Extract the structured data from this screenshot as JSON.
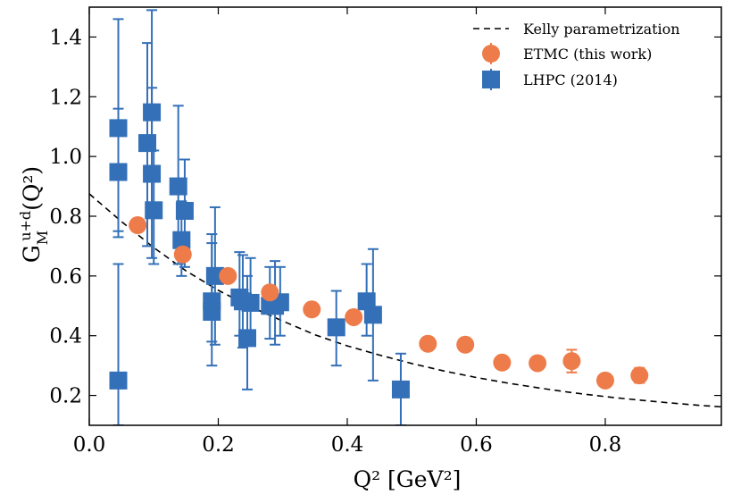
{
  "chart_data": {
    "type": "scatter",
    "title": "",
    "xlabel": "Q² [GeV²]",
    "ylabel": "G_M^{u+d}(Q²)",
    "ylabel_main": "G",
    "ylabel_sup": "u+d",
    "ylabel_sub": "M",
    "ylabel_tail": "(Q²)",
    "xlim": [
      0.0,
      0.98
    ],
    "ylim": [
      0.1,
      1.5
    ],
    "xticks": [
      0.0,
      0.2,
      0.4,
      0.6,
      0.8
    ],
    "xtick_labels": [
      "0.0",
      "0.2",
      "0.4",
      "0.6",
      "0.8"
    ],
    "yticks": [
      0.2,
      0.4,
      0.6,
      0.8,
      1.0,
      1.2,
      1.4
    ],
    "ytick_labels": [
      "0.2",
      "0.4",
      "0.6",
      "0.8",
      "1.0",
      "1.2",
      "1.4"
    ],
    "legend_position": "top-right",
    "colors": {
      "etmc": "#EE7C4A",
      "lhpc": "#3470B8",
      "kelly": "#000000"
    },
    "series": [
      {
        "name": "Kelly parametrization",
        "style": "dashed-line",
        "x": [
          0.0,
          0.05,
          0.1,
          0.15,
          0.2,
          0.25,
          0.3,
          0.35,
          0.4,
          0.45,
          0.5,
          0.55,
          0.6,
          0.65,
          0.7,
          0.75,
          0.8,
          0.85,
          0.9,
          0.95,
          0.98
        ],
        "y": [
          0.875,
          0.782,
          0.695,
          0.617,
          0.552,
          0.497,
          0.449,
          0.403,
          0.366,
          0.335,
          0.307,
          0.282,
          0.26,
          0.241,
          0.224,
          0.209,
          0.196,
          0.185,
          0.175,
          0.166,
          0.162
        ]
      },
      {
        "name": "ETMC (this work)",
        "marker": "circle",
        "points": [
          {
            "x": 0.075,
            "y": 0.77,
            "err": 0.015
          },
          {
            "x": 0.145,
            "y": 0.672,
            "err": 0.015
          },
          {
            "x": 0.215,
            "y": 0.6,
            "err": 0.015
          },
          {
            "x": 0.28,
            "y": 0.545,
            "err": 0.015
          },
          {
            "x": 0.345,
            "y": 0.488,
            "err": 0.015
          },
          {
            "x": 0.41,
            "y": 0.462,
            "err": 0.015
          },
          {
            "x": 0.525,
            "y": 0.373,
            "err": 0.015
          },
          {
            "x": 0.583,
            "y": 0.37,
            "err": 0.015
          },
          {
            "x": 0.64,
            "y": 0.31,
            "err": 0.015
          },
          {
            "x": 0.695,
            "y": 0.308,
            "err": 0.015
          },
          {
            "x": 0.748,
            "y": 0.315,
            "err": 0.038
          },
          {
            "x": 0.8,
            "y": 0.25,
            "err": 0.02
          },
          {
            "x": 0.853,
            "y": 0.267,
            "err": 0.025
          }
        ]
      },
      {
        "name": "LHPC (2014)",
        "marker": "square",
        "points": [
          {
            "x": 0.045,
            "y": 1.095,
            "lo": 0.75,
            "hi": 1.46
          },
          {
            "x": 0.045,
            "y": 0.948,
            "lo": 0.73,
            "hi": 1.16
          },
          {
            "x": 0.045,
            "y": 0.25,
            "lo": 0.1,
            "hi": 0.64
          },
          {
            "x": 0.09,
            "y": 1.045,
            "lo": 0.7,
            "hi": 1.38
          },
          {
            "x": 0.097,
            "y": 1.148,
            "lo": 0.82,
            "hi": 1.49
          },
          {
            "x": 0.097,
            "y": 0.942,
            "lo": 0.66,
            "hi": 1.23
          },
          {
            "x": 0.1,
            "y": 0.82,
            "lo": 0.64,
            "hi": 1.02
          },
          {
            "x": 0.138,
            "y": 0.9,
            "lo": 0.64,
            "hi": 1.17
          },
          {
            "x": 0.143,
            "y": 0.72,
            "lo": 0.6,
            "hi": 0.85
          },
          {
            "x": 0.148,
            "y": 0.818,
            "lo": 0.63,
            "hi": 0.99
          },
          {
            "x": 0.19,
            "y": 0.515,
            "lo": 0.38,
            "hi": 0.74
          },
          {
            "x": 0.19,
            "y": 0.48,
            "lo": 0.3,
            "hi": 0.71
          },
          {
            "x": 0.195,
            "y": 0.6,
            "lo": 0.37,
            "hi": 0.83
          },
          {
            "x": 0.233,
            "y": 0.528,
            "lo": 0.4,
            "hi": 0.68
          },
          {
            "x": 0.238,
            "y": 0.515,
            "lo": 0.36,
            "hi": 0.67
          },
          {
            "x": 0.245,
            "y": 0.392,
            "lo": 0.22,
            "hi": 0.6
          },
          {
            "x": 0.25,
            "y": 0.51,
            "lo": 0.4,
            "hi": 0.66
          },
          {
            "x": 0.28,
            "y": 0.5,
            "lo": 0.39,
            "hi": 0.63
          },
          {
            "x": 0.288,
            "y": 0.5,
            "lo": 0.37,
            "hi": 0.65
          },
          {
            "x": 0.296,
            "y": 0.512,
            "lo": 0.4,
            "hi": 0.63
          },
          {
            "x": 0.383,
            "y": 0.428,
            "lo": 0.3,
            "hi": 0.55
          },
          {
            "x": 0.43,
            "y": 0.515,
            "lo": 0.4,
            "hi": 0.64
          },
          {
            "x": 0.44,
            "y": 0.47,
            "lo": 0.25,
            "hi": 0.69
          },
          {
            "x": 0.483,
            "y": 0.22,
            "lo": 0.1,
            "hi": 0.34
          }
        ]
      }
    ]
  }
}
